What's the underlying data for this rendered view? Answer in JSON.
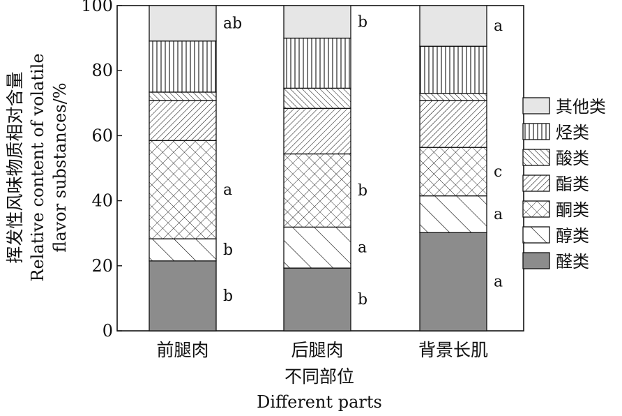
{
  "chart_data": {
    "type": "bar",
    "stacked": true,
    "categories": [
      "前腿肉",
      "后腿肉",
      "背景长肌"
    ],
    "xlabel_cn": "不同部位",
    "xlabel_en": "Different parts",
    "ylabel_cn": "挥发性风味物质相对含量",
    "ylabel_en": [
      "Relative content of volatile",
      "flavor substances/%"
    ],
    "ylim": [
      0,
      100
    ],
    "yticks": [
      0,
      20,
      40,
      60,
      80,
      100
    ],
    "series": [
      {
        "name": "醛类",
        "values": [
          21.5,
          19.3,
          30.2
        ],
        "pattern": "solid",
        "color": "#8c8c8c",
        "sig": [
          "b",
          "b",
          "a"
        ]
      },
      {
        "name": "醇类",
        "values": [
          6.8,
          12.6,
          11.3
        ],
        "pattern": "wide-diagonal",
        "sig": [
          "b",
          "a",
          "a"
        ]
      },
      {
        "name": "酮类",
        "values": [
          30.2,
          22.5,
          14.9
        ],
        "pattern": "crosshatch",
        "sig": [
          "a",
          "b",
          "c"
        ]
      },
      {
        "name": "酯类",
        "values": [
          12.3,
          14.0,
          14.4
        ],
        "pattern": "backslash",
        "sig": [
          "",
          "",
          ""
        ]
      },
      {
        "name": "酸类",
        "values": [
          2.6,
          6.2,
          2.2
        ],
        "pattern": "diagonal",
        "sig": [
          "",
          "",
          ""
        ]
      },
      {
        "name": "烃类",
        "values": [
          15.7,
          15.4,
          14.5
        ],
        "pattern": "vertical",
        "sig": [
          "",
          "",
          ""
        ]
      },
      {
        "name": "其他类",
        "values": [
          10.9,
          10.0,
          12.5
        ],
        "pattern": "light",
        "color": "#e6e6e6",
        "sig": [
          "ab",
          "b",
          "a"
        ]
      }
    ],
    "legend_position": "right",
    "grid": false
  }
}
